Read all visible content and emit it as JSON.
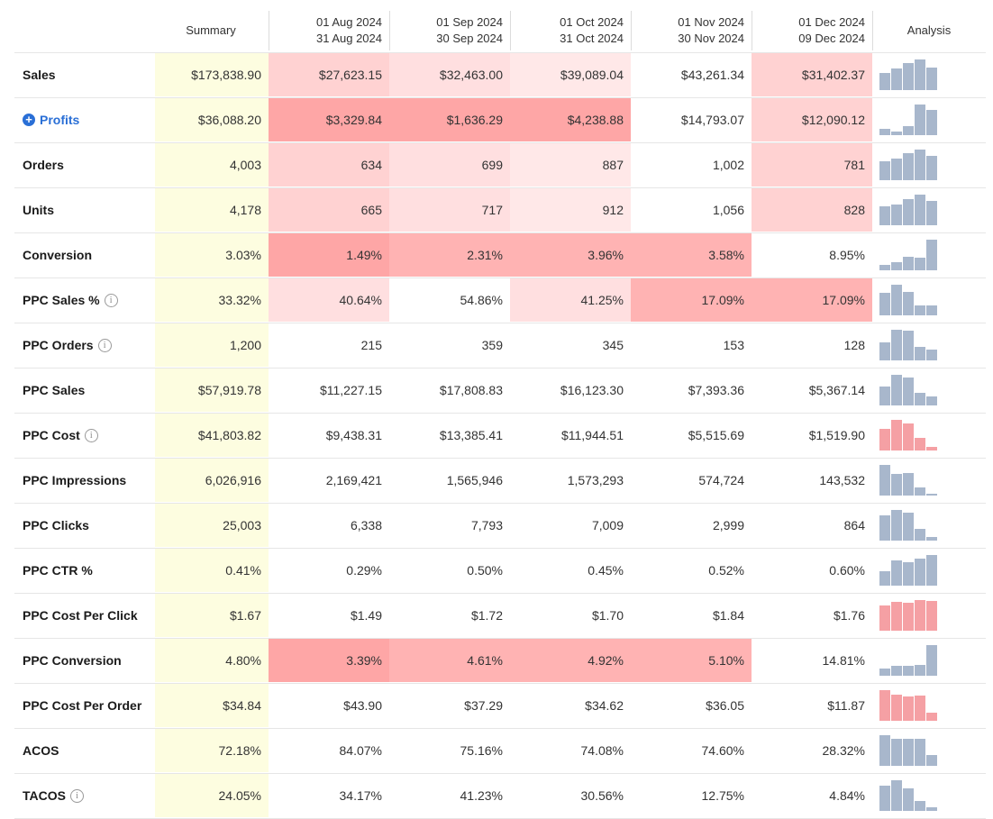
{
  "header": {
    "summary": "Summary",
    "periods": [
      {
        "from": "01 Aug 2024",
        "to": "31 Aug 2024"
      },
      {
        "from": "01 Sep 2024",
        "to": "30 Sep 2024"
      },
      {
        "from": "01 Oct 2024",
        "to": "31 Oct 2024"
      },
      {
        "from": "01 Nov 2024",
        "to": "30 Nov 2024"
      },
      {
        "from": "01 Dec 2024",
        "to": "09 Dec 2024"
      }
    ],
    "analysis": "Analysis"
  },
  "colors": {
    "summary_bg": "#fdfde0",
    "heat_light": "#ffe8e8",
    "heat_mid": "#ffd2d2",
    "heat_strong": "#ffb3b3",
    "heat_stronger": "#fea6a6",
    "spark_gray": "#a8b7cc",
    "spark_red": "#f5a0a4",
    "link": "#2a6fd6"
  },
  "rows": [
    {
      "label": "Sales",
      "summary": "$173,838.90",
      "values": [
        "$27,623.15",
        "$32,463.00",
        "$39,089.04",
        "$43,261.34",
        "$31,402.37"
      ],
      "heat": [
        "mid",
        "light2",
        "light",
        "none",
        "mid"
      ],
      "spark": [
        0.55,
        0.72,
        0.88,
        1.0,
        0.73
      ],
      "spark_color": "gray"
    },
    {
      "label": "Profits",
      "link": true,
      "summary": "$36,088.20",
      "values": [
        "$3,329.84",
        "$1,636.29",
        "$4,238.88",
        "$14,793.07",
        "$12,090.12"
      ],
      "heat": [
        "stronger",
        "stronger",
        "stronger",
        "none",
        "mid"
      ],
      "spark": [
        0.22,
        0.11,
        0.28,
        1.0,
        0.82
      ],
      "spark_color": "gray"
    },
    {
      "label": "Orders",
      "summary": "4,003",
      "values": [
        "634",
        "699",
        "887",
        "1,002",
        "781"
      ],
      "heat": [
        "mid",
        "light2",
        "light",
        "none",
        "mid"
      ],
      "spark": [
        0.63,
        0.7,
        0.88,
        1.0,
        0.78
      ],
      "spark_color": "gray"
    },
    {
      "label": "Units",
      "summary": "4,178",
      "values": [
        "665",
        "717",
        "912",
        "1,056",
        "828"
      ],
      "heat": [
        "mid",
        "light2",
        "light",
        "none",
        "mid"
      ],
      "spark": [
        0.63,
        0.68,
        0.86,
        1.0,
        0.78
      ],
      "spark_color": "gray"
    },
    {
      "label": "Conversion",
      "summary": "3.03%",
      "values": [
        "1.49%",
        "2.31%",
        "3.96%",
        "3.58%",
        "8.95%"
      ],
      "heat": [
        "stronger",
        "strong",
        "strong",
        "strong",
        "none"
      ],
      "spark": [
        0.17,
        0.26,
        0.44,
        0.4,
        1.0
      ],
      "spark_color": "gray"
    },
    {
      "label": "PPC Sales %",
      "info": true,
      "summary": "33.32%",
      "values": [
        "40.64%",
        "54.86%",
        "41.25%",
        "17.09%",
        "17.09%"
      ],
      "heat": [
        "light2",
        "none",
        "light2",
        "strong",
        "strong"
      ],
      "spark": [
        0.74,
        1.0,
        0.75,
        0.31,
        0.31
      ],
      "spark_color": "gray"
    },
    {
      "label": "PPC Orders",
      "info": true,
      "summary": "1,200",
      "values": [
        "215",
        "359",
        "345",
        "153",
        "128"
      ],
      "heat": [
        "none",
        "none",
        "none",
        "none",
        "none"
      ],
      "spark": [
        0.6,
        1.0,
        0.96,
        0.43,
        0.36
      ],
      "spark_color": "gray"
    },
    {
      "label": "PPC Sales",
      "summary": "$57,919.78",
      "values": [
        "$11,227.15",
        "$17,808.83",
        "$16,123.30",
        "$7,393.36",
        "$5,367.14"
      ],
      "heat": [
        "none",
        "none",
        "none",
        "none",
        "none"
      ],
      "spark": [
        0.63,
        1.0,
        0.91,
        0.42,
        0.3
      ],
      "spark_color": "gray"
    },
    {
      "label": "PPC Cost",
      "info": true,
      "summary": "$41,803.82",
      "values": [
        "$9,438.31",
        "$13,385.41",
        "$11,944.51",
        "$5,515.69",
        "$1,519.90"
      ],
      "heat": [
        "none",
        "none",
        "none",
        "none",
        "none"
      ],
      "spark": [
        0.71,
        1.0,
        0.89,
        0.41,
        0.11
      ],
      "spark_color": "red"
    },
    {
      "label": "PPC Impressions",
      "summary": "6,026,916",
      "values": [
        "2,169,421",
        "1,565,946",
        "1,573,293",
        "574,724",
        "143,532"
      ],
      "heat": [
        "none",
        "none",
        "none",
        "none",
        "none"
      ],
      "spark": [
        1.0,
        0.72,
        0.73,
        0.26,
        0.07
      ],
      "spark_color": "gray"
    },
    {
      "label": "PPC Clicks",
      "summary": "25,003",
      "values": [
        "6,338",
        "7,793",
        "7,009",
        "2,999",
        "864"
      ],
      "heat": [
        "none",
        "none",
        "none",
        "none",
        "none"
      ],
      "spark": [
        0.81,
        1.0,
        0.9,
        0.38,
        0.11
      ],
      "spark_color": "gray"
    },
    {
      "label": "PPC CTR %",
      "summary": "0.41%",
      "values": [
        "0.29%",
        "0.50%",
        "0.45%",
        "0.52%",
        "0.60%"
      ],
      "heat": [
        "none",
        "none",
        "none",
        "none",
        "none"
      ],
      "spark": [
        0.48,
        0.83,
        0.75,
        0.87,
        1.0
      ],
      "spark_color": "gray"
    },
    {
      "label": "PPC Cost Per Click",
      "summary": "$1.67",
      "values": [
        "$1.49",
        "$1.72",
        "$1.70",
        "$1.84",
        "$1.76"
      ],
      "heat": [
        "none",
        "none",
        "none",
        "none",
        "none"
      ],
      "spark": [
        0.81,
        0.93,
        0.92,
        1.0,
        0.96
      ],
      "spark_color": "red"
    },
    {
      "label": "PPC Conversion",
      "summary": "4.80%",
      "values": [
        "3.39%",
        "4.61%",
        "4.92%",
        "5.10%",
        "14.81%"
      ],
      "heat": [
        "stronger",
        "strong",
        "strong",
        "strong",
        "none"
      ],
      "spark": [
        0.23,
        0.31,
        0.33,
        0.34,
        1.0
      ],
      "spark_color": "gray"
    },
    {
      "label": "PPC Cost Per Order",
      "summary": "$34.84",
      "values": [
        "$43.90",
        "$37.29",
        "$34.62",
        "$36.05",
        "$11.87"
      ],
      "heat": [
        "none",
        "none",
        "none",
        "none",
        "none"
      ],
      "spark": [
        1.0,
        0.85,
        0.79,
        0.82,
        0.27
      ],
      "spark_color": "red"
    },
    {
      "label": "ACOS",
      "summary": "72.18%",
      "values": [
        "84.07%",
        "75.16%",
        "74.08%",
        "74.60%",
        "28.32%"
      ],
      "heat": [
        "none",
        "none",
        "none",
        "none",
        "none"
      ],
      "spark": [
        1.0,
        0.89,
        0.88,
        0.89,
        0.34
      ],
      "spark_color": "gray"
    },
    {
      "label": "TACOS",
      "info": true,
      "summary": "24.05%",
      "values": [
        "34.17%",
        "41.23%",
        "30.56%",
        "12.75%",
        "4.84%"
      ],
      "heat": [
        "none",
        "none",
        "none",
        "none",
        "none"
      ],
      "spark": [
        0.83,
        1.0,
        0.74,
        0.31,
        0.12
      ],
      "spark_color": "gray"
    }
  ]
}
